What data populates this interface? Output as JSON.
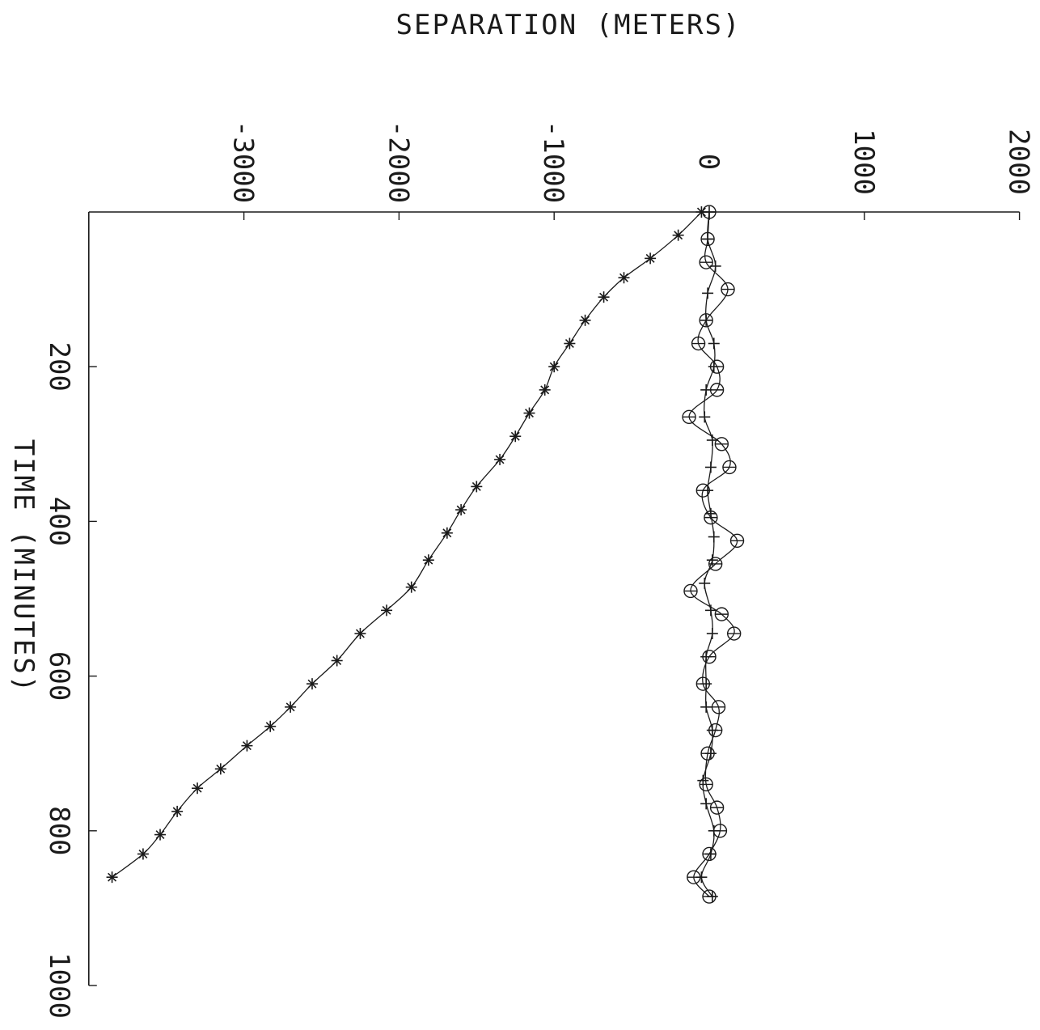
{
  "chart_data": {
    "type": "line",
    "orientation": "rotated 90 degrees clockwise",
    "xlabel": "TIME (MINUTES)",
    "ylabel": "SEPARATION (METERS)",
    "xlim": [
      0,
      1000
    ],
    "ylim": [
      -4000,
      2000
    ],
    "x_ticks": [
      200,
      400,
      600,
      800,
      1000
    ],
    "y_ticks": [
      -3000,
      -2000,
      -1000,
      0,
      1000,
      2000
    ],
    "grid": false,
    "series": [
      {
        "marker": "asterisk",
        "x": [
          0,
          30,
          60,
          85,
          110,
          140,
          170,
          200,
          230,
          260,
          290,
          320,
          355,
          385,
          415,
          450,
          485,
          515,
          545,
          580,
          610,
          640,
          665,
          690,
          720,
          745,
          775,
          805,
          830,
          860
        ],
        "values": [
          -50,
          -200,
          -380,
          -550,
          -680,
          -800,
          -900,
          -1000,
          -1060,
          -1160,
          -1250,
          -1350,
          -1500,
          -1600,
          -1690,
          -1810,
          -1920,
          -2080,
          -2250,
          -2400,
          -2560,
          -2700,
          -2830,
          -2980,
          -3150,
          -3300,
          -3430,
          -3540,
          -3650,
          -3850
        ]
      },
      {
        "marker": "circle",
        "x": [
          0,
          35,
          65,
          100,
          140,
          170,
          200,
          230,
          265,
          300,
          330,
          360,
          395,
          425,
          455,
          490,
          520,
          545,
          575,
          610,
          640,
          670,
          700,
          740,
          770,
          800,
          830,
          860,
          885
        ],
        "values": [
          0,
          -10,
          -20,
          120,
          -20,
          -70,
          50,
          50,
          -130,
          80,
          130,
          -40,
          10,
          180,
          40,
          -120,
          80,
          160,
          0,
          -40,
          60,
          40,
          -10,
          -20,
          50,
          70,
          0,
          -100,
          0
        ]
      },
      {
        "marker": "plus",
        "x": [
          0,
          35,
          70,
          105,
          140,
          170,
          200,
          230,
          265,
          295,
          330,
          360,
          390,
          420,
          450,
          480,
          515,
          545,
          575,
          610,
          640,
          670,
          700,
          735,
          765,
          800,
          830,
          860,
          885
        ],
        "values": [
          0,
          -10,
          40,
          -10,
          -20,
          30,
          30,
          -20,
          -30,
          20,
          10,
          -10,
          10,
          30,
          20,
          -30,
          10,
          20,
          -20,
          -20,
          -20,
          20,
          10,
          -40,
          -20,
          30,
          10,
          -50,
          20
        ]
      }
    ]
  }
}
